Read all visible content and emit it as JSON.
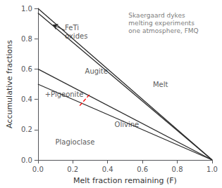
{
  "chart_data": {
    "type": "line",
    "xlabel": "Melt fraction remaining (F)",
    "ylabel": "Accumulative fractions",
    "xlim": [
      0,
      1.0
    ],
    "ylim": [
      0,
      1.0
    ],
    "xticks": [
      {
        "value": 0,
        "label": "0.0"
      },
      0.2,
      0.4,
      0.6,
      0.8,
      {
        "value": 1.0,
        "label": "1.0"
      }
    ],
    "yticks": [
      {
        "value": 0,
        "label": "0.0"
      },
      0.2,
      0.4,
      0.6,
      0.8,
      {
        "value": 1.0,
        "label": "1.0"
      }
    ],
    "grid": false,
    "series": [
      {
        "x": [
          0,
          1.0
        ],
        "values": [
          1.0,
          0.0
        ],
        "color": "#2a2a2a",
        "line_style": "solid"
      },
      {
        "x": [
          0,
          1.0
        ],
        "values": [
          0.97,
          0.0
        ],
        "color": "#2a2a2a",
        "line_style": "solid"
      },
      {
        "x": [
          0,
          1.0
        ],
        "values": [
          0.6,
          0.0
        ],
        "color": "#2a2a2a",
        "line_style": "solid"
      },
      {
        "x": [
          0,
          1.0
        ],
        "values": [
          0.5,
          0.0
        ],
        "color": "#2a2a2a",
        "line_style": "solid"
      },
      {
        "x": [
          0.24,
          0.295
        ],
        "values": [
          0.358,
          0.43
        ],
        "color": "red",
        "line_style": "dashed"
      },
      {
        "x": [
          0.155,
          0.085
        ],
        "values": [
          0.855,
          0.892
        ],
        "color": "#2a2a2a",
        "marker": "arrow"
      }
    ],
    "annotations": [
      {
        "text": "FeTi\noxides",
        "x": 0.155,
        "y": 0.845
      },
      {
        "text": "Augite",
        "x": 0.27,
        "y": 0.585
      },
      {
        "text": "Melt",
        "x": 0.66,
        "y": 0.5
      },
      {
        "text": "Olivine",
        "x": 0.44,
        "y": 0.235
      },
      {
        "text": "Plagioclase",
        "x": 0.1,
        "y": 0.12
      },
      {
        "text": "+Pigeonite",
        "x": 0.04,
        "y": 0.435
      }
    ],
    "annotation": {
      "text": "Skaergaard dykes\nmelting experiments\none atmosphere, FMQ",
      "x": 0.52,
      "y": 0.98,
      "color": "#555555"
    }
  }
}
